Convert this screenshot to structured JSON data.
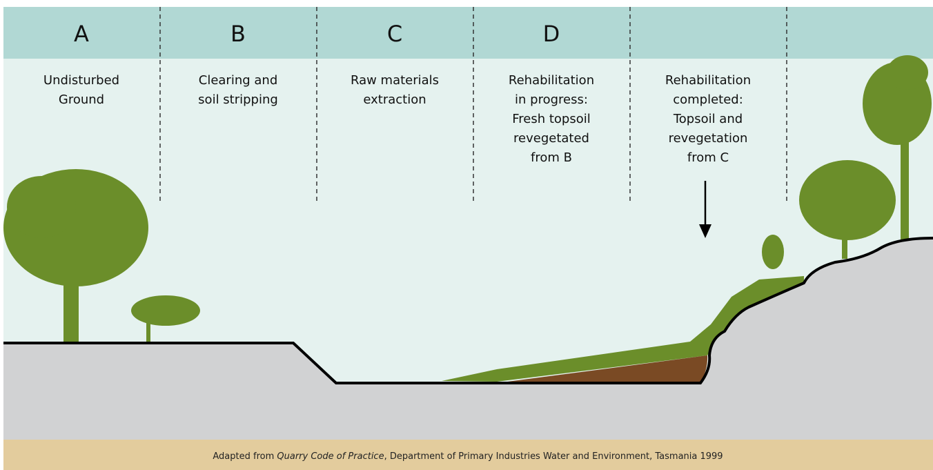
{
  "stages": [
    {
      "letter": "A",
      "description": [
        "Undisturbed",
        "Ground"
      ]
    },
    {
      "letter": "B",
      "description": [
        "Clearing and",
        "soil stripping"
      ]
    },
    {
      "letter": "C",
      "description": [
        "Raw materials",
        "extraction"
      ]
    },
    {
      "letter": "D",
      "description": [
        "Rehabilitation",
        "in progress:",
        "Fresh topsoil",
        "revegetated",
        "from B"
      ]
    },
    {
      "description": [
        "Rehabilitation",
        "completed:",
        "Topsoil and",
        "revegetation",
        "from C"
      ]
    }
  ],
  "footer": {
    "before": "Adapted from ",
    "italic": "Quarry Code of Practice",
    "after": ", Department of Primary Industries Water and Environment, Tasmania 1999"
  }
}
